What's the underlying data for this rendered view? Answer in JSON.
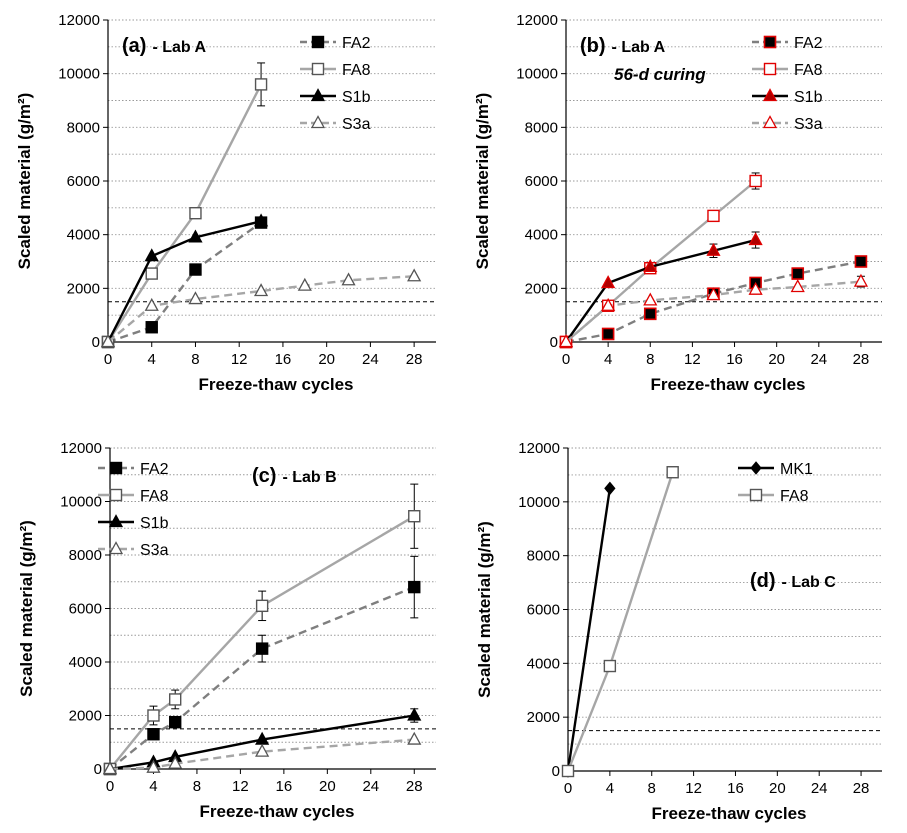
{
  "chart_data": [
    {
      "type": "line",
      "title": "(a)",
      "lab": "- Lab A",
      "subtitle": "",
      "xlabel": "Freeze-thaw cycles",
      "ylabel": "Scaled material (g/m²)",
      "xlim": [
        0,
        30
      ],
      "ylim": [
        0,
        12000
      ],
      "xticks": [
        0,
        4,
        8,
        12,
        16,
        20,
        24,
        28
      ],
      "yticks": [
        0,
        2000,
        4000,
        6000,
        8000,
        10000,
        12000
      ],
      "grid": "horizontal-dotted",
      "threshold": 1500,
      "legend": "top-right",
      "marker_color": "#000000",
      "series": [
        {
          "name": "FA2",
          "x": [
            0,
            4,
            8,
            14
          ],
          "y": [
            0,
            550,
            2700,
            4450
          ],
          "err": [
            0,
            0,
            0,
            0
          ],
          "color": "#7f7f7f",
          "dash": "dashed",
          "marker": "square-filled"
        },
        {
          "name": "FA8",
          "x": [
            0,
            4,
            8,
            14
          ],
          "y": [
            0,
            2550,
            4800,
            9600
          ],
          "err": [
            0,
            0,
            0,
            800
          ],
          "color": "#a6a6a6",
          "dash": "solid",
          "marker": "square-open"
        },
        {
          "name": "S1b",
          "x": [
            0,
            4,
            8,
            14
          ],
          "y": [
            0,
            3200,
            3900,
            4500
          ],
          "err": [
            0,
            0,
            0,
            0
          ],
          "color": "#000000",
          "dash": "solid",
          "marker": "triangle-filled"
        },
        {
          "name": "S3a",
          "x": [
            0,
            4,
            8,
            14,
            18,
            22,
            28
          ],
          "y": [
            0,
            1350,
            1600,
            1900,
            2100,
            2300,
            2450
          ],
          "err": [
            0,
            0,
            0,
            0,
            0,
            0,
            0
          ],
          "color": "#a6a6a6",
          "dash": "dashed",
          "marker": "triangle-open"
        }
      ]
    },
    {
      "type": "line",
      "title": "(b)",
      "lab": "- Lab A",
      "subtitle": "56-d curing",
      "xlabel": "Freeze-thaw cycles",
      "ylabel": "Scaled material (g/m²)",
      "xlim": [
        0,
        30
      ],
      "ylim": [
        0,
        12000
      ],
      "xticks": [
        0,
        4,
        8,
        12,
        16,
        20,
        24,
        28
      ],
      "yticks": [
        0,
        2000,
        4000,
        6000,
        8000,
        10000,
        12000
      ],
      "grid": "horizontal-dotted",
      "threshold": 1500,
      "legend": "top-right",
      "marker_color": "#e00000",
      "series": [
        {
          "name": "FA2",
          "x": [
            0,
            4,
            8,
            14,
            18,
            22,
            28
          ],
          "y": [
            0,
            300,
            1050,
            1800,
            2200,
            2550,
            3000
          ],
          "err": [
            0,
            0,
            0,
            0,
            0,
            0,
            0
          ],
          "color": "#7f7f7f",
          "dash": "dashed",
          "marker": "square-filled"
        },
        {
          "name": "FA8",
          "x": [
            0,
            4,
            8,
            14,
            18
          ],
          "y": [
            0,
            1350,
            2750,
            4700,
            6000
          ],
          "err": [
            0,
            0,
            0,
            0,
            300
          ],
          "color": "#a6a6a6",
          "dash": "solid",
          "marker": "square-open"
        },
        {
          "name": "S1b",
          "x": [
            0,
            4,
            8,
            14,
            18
          ],
          "y": [
            0,
            2200,
            2800,
            3400,
            3800
          ],
          "err": [
            0,
            0,
            0,
            250,
            300
          ],
          "color": "#000000",
          "dash": "solid",
          "marker": "triangle-filled"
        },
        {
          "name": "S3a",
          "x": [
            0,
            4,
            8,
            14,
            18,
            22,
            28
          ],
          "y": [
            0,
            1350,
            1550,
            1750,
            1950,
            2050,
            2250
          ],
          "err": [
            0,
            0,
            0,
            0,
            0,
            0,
            200
          ],
          "color": "#a6a6a6",
          "dash": "dashed",
          "marker": "triangle-open"
        }
      ]
    },
    {
      "type": "line",
      "title": "(c)",
      "lab": "- Lab B",
      "subtitle": "",
      "xlabel": "Freeze-thaw cycles",
      "ylabel": "Scaled material (g/m²)",
      "xlim": [
        0,
        30
      ],
      "ylim": [
        0,
        12000
      ],
      "xticks": [
        0,
        4,
        8,
        12,
        16,
        20,
        24,
        28
      ],
      "yticks": [
        0,
        2000,
        4000,
        6000,
        8000,
        10000,
        12000
      ],
      "grid": "horizontal-dotted",
      "threshold": 1500,
      "legend": "top-left",
      "marker_color": "#000000",
      "series": [
        {
          "name": "FA2",
          "x": [
            0,
            4,
            6,
            14,
            28
          ],
          "y": [
            0,
            1300,
            1750,
            4500,
            6800
          ],
          "err": [
            0,
            0,
            0,
            500,
            1150
          ],
          "color": "#7f7f7f",
          "dash": "dashed",
          "marker": "square-filled"
        },
        {
          "name": "FA8",
          "x": [
            0,
            4,
            6,
            14,
            28
          ],
          "y": [
            0,
            2000,
            2600,
            6100,
            9450
          ],
          "err": [
            0,
            350,
            350,
            550,
            1200
          ],
          "color": "#a6a6a6",
          "dash": "solid",
          "marker": "square-open"
        },
        {
          "name": "S1b",
          "x": [
            0,
            4,
            6,
            14,
            28
          ],
          "y": [
            0,
            250,
            450,
            1100,
            2000
          ],
          "err": [
            0,
            0,
            0,
            0,
            250
          ],
          "color": "#000000",
          "dash": "solid",
          "marker": "triangle-filled"
        },
        {
          "name": "S3a",
          "x": [
            0,
            4,
            6,
            14,
            28
          ],
          "y": [
            0,
            50,
            200,
            650,
            1100
          ],
          "err": [
            0,
            0,
            0,
            0,
            0
          ],
          "color": "#a6a6a6",
          "dash": "dashed",
          "marker": "triangle-open"
        }
      ]
    },
    {
      "type": "line",
      "title": "(d)",
      "lab": "- Lab C",
      "subtitle": "",
      "xlabel": "Freeze-thaw cycles",
      "ylabel": "Scaled material (g/m²)",
      "xlim": [
        0,
        30
      ],
      "ylim": [
        0,
        12000
      ],
      "xticks": [
        0,
        4,
        8,
        12,
        16,
        20,
        24,
        28
      ],
      "yticks": [
        0,
        2000,
        4000,
        6000,
        8000,
        10000,
        12000
      ],
      "grid": "horizontal-dotted",
      "threshold": 1500,
      "legend": "top-right",
      "marker_color": "#000000",
      "series": [
        {
          "name": "MK1",
          "x": [
            0,
            4
          ],
          "y": [
            0,
            10500
          ],
          "err": [
            0,
            0
          ],
          "color": "#000000",
          "dash": "solid",
          "marker": "diamond-filled"
        },
        {
          "name": "FA8",
          "x": [
            0,
            4,
            10
          ],
          "y": [
            0,
            3900,
            11100
          ],
          "err": [
            0,
            0,
            0
          ],
          "color": "#a6a6a6",
          "dash": "solid",
          "marker": "square-open"
        }
      ]
    }
  ]
}
